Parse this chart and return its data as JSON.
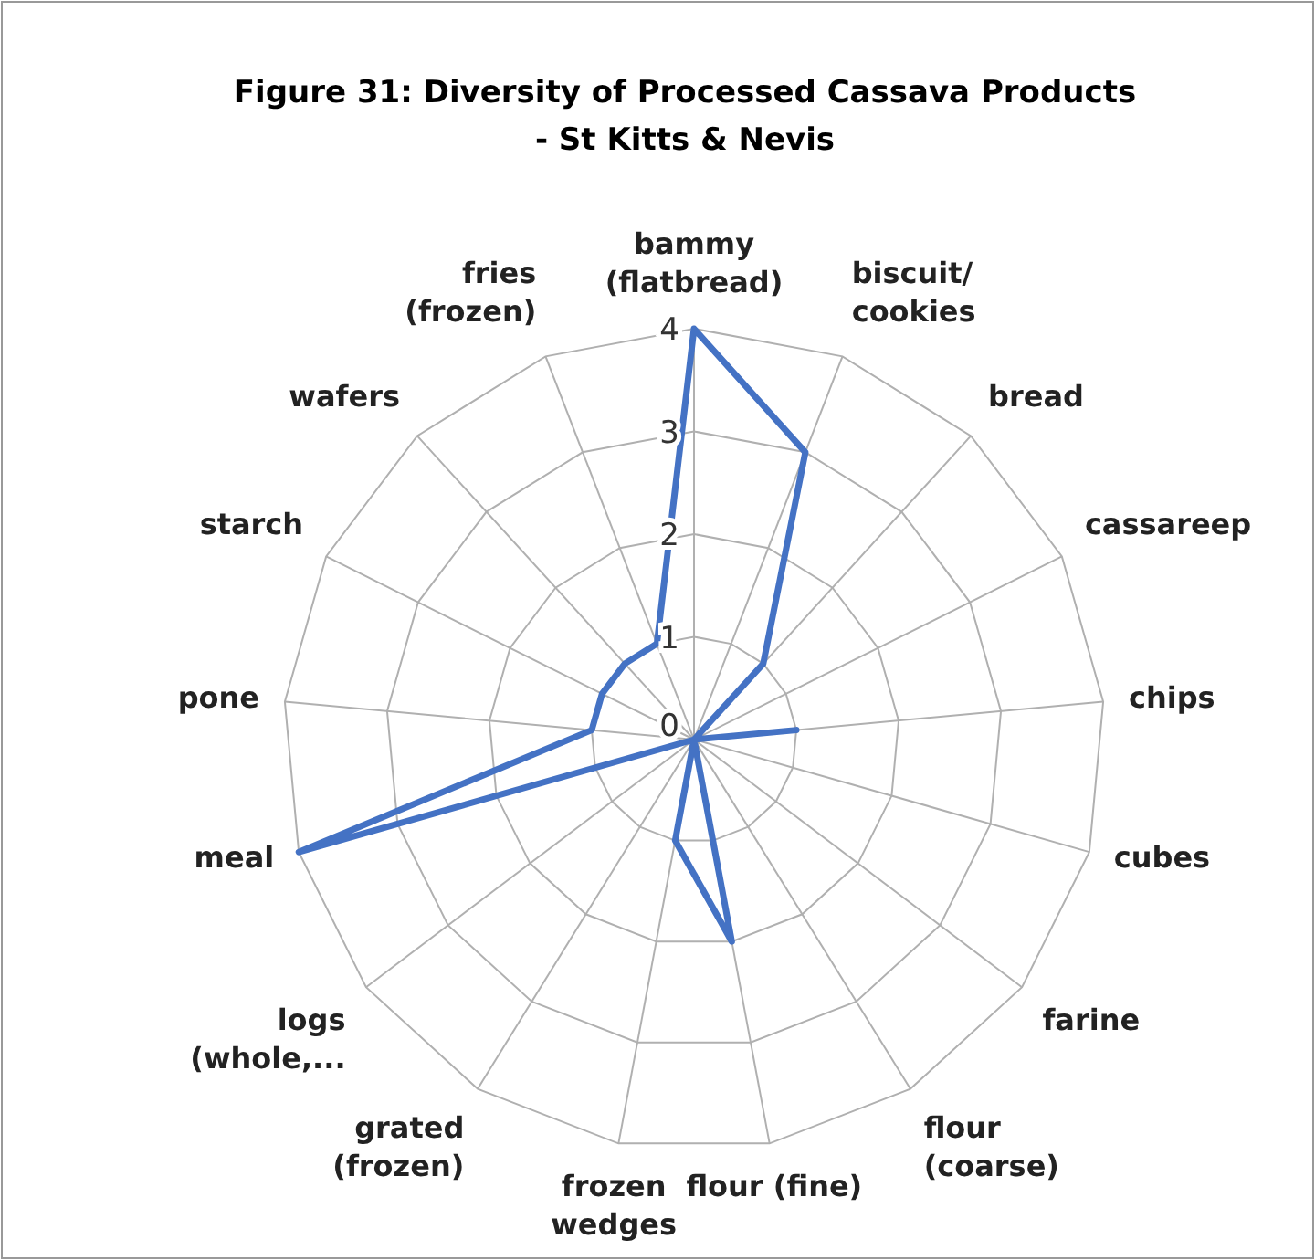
{
  "chart_data": {
    "type": "radar",
    "title": "Figure 31: Diversity of Processed Cassava Products - St Kitts & Nevis",
    "categories": [
      "bammy (flatbread)",
      "biscuit/ cookies",
      "bread",
      "cassareep",
      "chips",
      "cubes",
      "farine",
      "flour (coarse)",
      "flour (fine)",
      "frozen wedges",
      "grated (frozen)",
      "logs (whole,...",
      "meal",
      "pone",
      "starch",
      "wafers",
      "fries (frozen)"
    ],
    "series": [
      {
        "color": "#4472c4",
        "values": [
          4,
          3,
          1,
          0,
          1,
          0,
          0,
          0,
          2,
          1,
          0,
          0,
          4,
          1,
          1,
          1,
          1
        ]
      }
    ],
    "ylim": [
      0,
      4
    ],
    "yticks": [
      0,
      1,
      2,
      3,
      4
    ],
    "grid": true
  }
}
